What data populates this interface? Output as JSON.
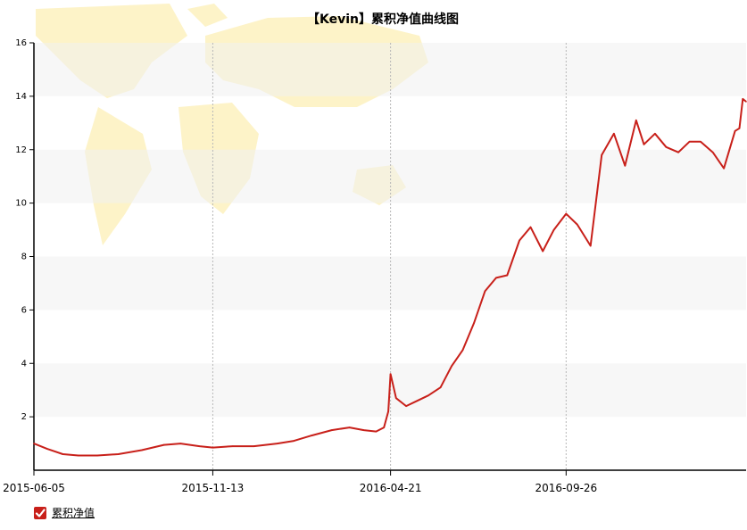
{
  "chart_data": {
    "type": "line",
    "title": "【Kevin】累积净值曲线图",
    "xlabel": "",
    "ylabel": "",
    "x_ticks": [
      "2015-06-05",
      "2015-11-13",
      "2016-04-21",
      "2016-09-26"
    ],
    "y_ticks": [
      2,
      4,
      6,
      8,
      10,
      12,
      14,
      16
    ],
    "ylim": [
      0,
      16
    ],
    "x_range": [
      "2015-06-05",
      "2017-03-07"
    ],
    "grid": "horizontal-bands",
    "legend": "bottom-left",
    "series": [
      {
        "name": "累积净值",
        "color": "#c8201a",
        "x": [
          "2015-06-05",
          "2015-06-17",
          "2015-07-01",
          "2015-07-15",
          "2015-08-01",
          "2015-08-20",
          "2015-09-10",
          "2015-09-30",
          "2015-10-15",
          "2015-11-01",
          "2015-11-13",
          "2015-12-01",
          "2015-12-20",
          "2016-01-10",
          "2016-01-25",
          "2016-02-10",
          "2016-02-28",
          "2016-03-15",
          "2016-03-28",
          "2016-04-08",
          "2016-04-15",
          "2016-04-19",
          "2016-04-21",
          "2016-04-26",
          "2016-05-05",
          "2016-05-15",
          "2016-05-25",
          "2016-06-05",
          "2016-06-15",
          "2016-06-25",
          "2016-07-05",
          "2016-07-15",
          "2016-07-25",
          "2016-08-04",
          "2016-08-15",
          "2016-08-25",
          "2016-09-05",
          "2016-09-15",
          "2016-09-26",
          "2016-10-06",
          "2016-10-18",
          "2016-10-28",
          "2016-11-08",
          "2016-11-18",
          "2016-11-28",
          "2016-12-05",
          "2016-12-15",
          "2016-12-25",
          "2017-01-05",
          "2017-01-15",
          "2017-01-25",
          "2017-02-05",
          "2017-02-15",
          "2017-02-25",
          "2017-03-01",
          "2017-03-04",
          "2017-03-07"
        ],
        "values": [
          1.0,
          0.8,
          0.6,
          0.55,
          0.55,
          0.6,
          0.75,
          0.95,
          1.0,
          0.9,
          0.85,
          0.9,
          0.9,
          1.0,
          1.1,
          1.3,
          1.5,
          1.6,
          1.5,
          1.45,
          1.6,
          2.2,
          3.6,
          2.7,
          2.4,
          2.6,
          2.8,
          3.1,
          3.9,
          4.5,
          5.5,
          6.7,
          7.2,
          7.3,
          8.6,
          9.1,
          8.2,
          9.0,
          9.6,
          9.2,
          8.4,
          11.8,
          12.6,
          11.4,
          13.1,
          12.2,
          12.6,
          12.1,
          11.9,
          12.3,
          12.3,
          11.9,
          11.3,
          12.7,
          12.8,
          13.9,
          13.8
        ]
      }
    ]
  }
}
